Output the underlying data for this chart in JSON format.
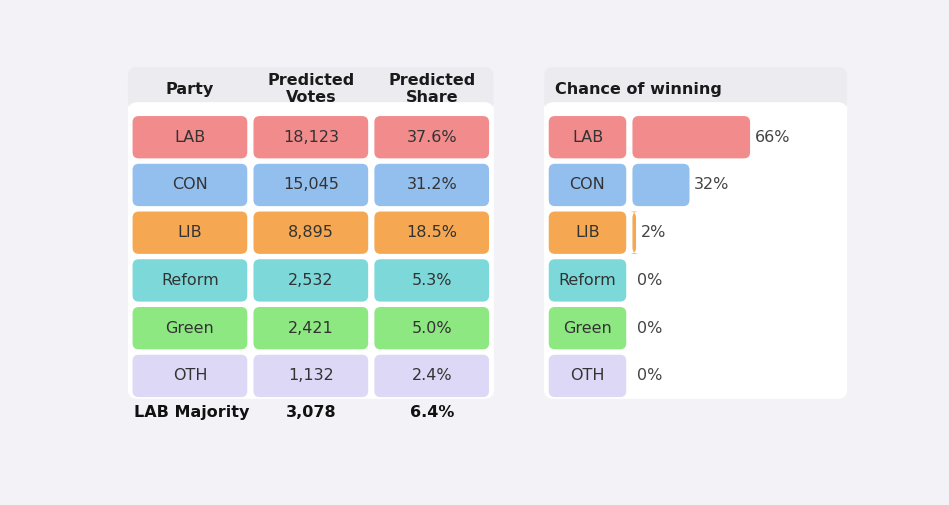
{
  "parties": [
    "LAB",
    "CON",
    "LIB",
    "Reform",
    "Green",
    "OTH"
  ],
  "predicted_votes": [
    "18,123",
    "15,045",
    "8,895",
    "2,532",
    "2,421",
    "1,132"
  ],
  "predicted_share": [
    "37.6%",
    "31.2%",
    "18.5%",
    "5.3%",
    "5.0%",
    "2.4%"
  ],
  "chance_of_winning": [
    66,
    32,
    2,
    0,
    0,
    0
  ],
  "chance_labels": [
    "66%",
    "32%",
    "2%",
    "0%",
    "0%",
    "0%"
  ],
  "party_colors": [
    "#F28B8B",
    "#92BFED",
    "#F5A851",
    "#7DD9D9",
    "#8EE882",
    "#DDD8F5"
  ],
  "col_headers": [
    "Party",
    "Predicted\nVotes",
    "Predicted\nShare"
  ],
  "right_header": "Chance of winning",
  "majority_label": "LAB Majority",
  "majority_votes": "3,078",
  "majority_share": "6.4%",
  "bg_color": "#F2F2F7",
  "panel_bg": "#FFFFFF",
  "header_bg": "#EBEBF0",
  "header_fontsize": 11.5,
  "cell_fontsize": 11.5,
  "figsize": [
    9.49,
    5.05
  ]
}
